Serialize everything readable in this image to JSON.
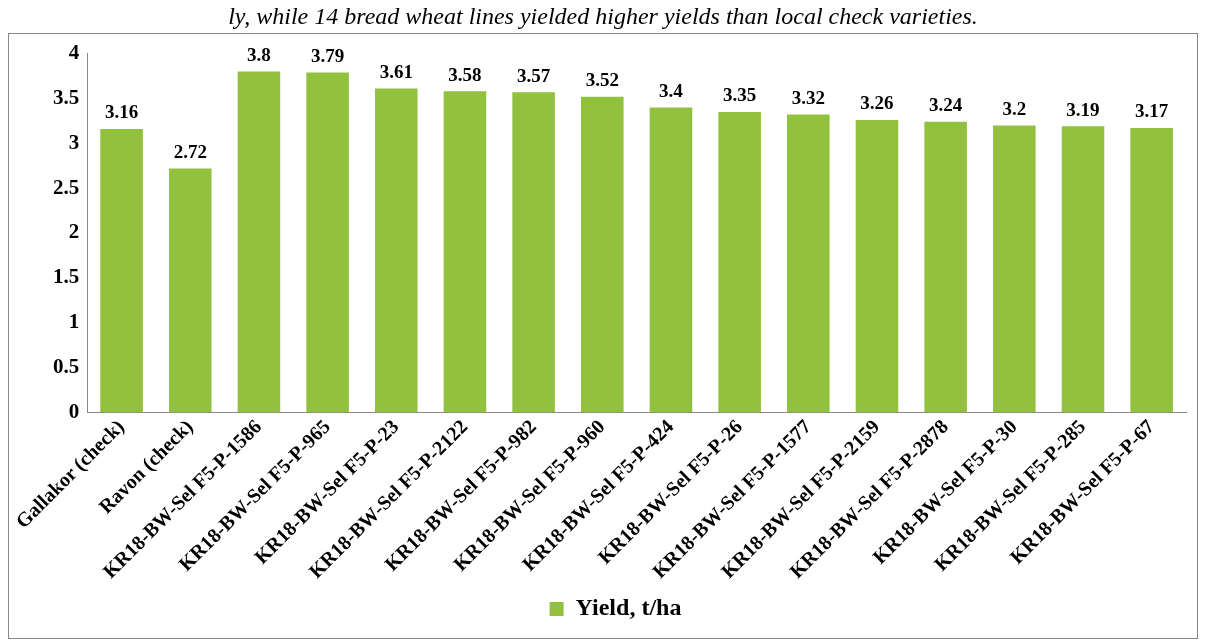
{
  "chart_data": {
    "type": "bar",
    "annotations": [
      "ly, while 14 bread wheat lines yielded higher yields than local check varieties."
    ],
    "categories": [
      "Gallakor (check)",
      "Ravon (check)",
      "KR18-BW-Sel F5-P-1586",
      "KR18-BW-Sel F5-P-965",
      "KR18-BW-Sel F5-P-23",
      "KR18-BW-Sel F5-P-2122",
      "KR18-BW-Sel F5-P-982",
      "KR18-BW-Sel F5-P-960",
      "KR18-BW-Sel F5-P-424",
      "KR18-BW-Sel F5-P-26",
      "KR18-BW-Sel F5-P-1577",
      "KR18-BW-Sel F5-P-2159",
      "KR18-BW-Sel F5-P-2878",
      "KR18-BW-Sel F5-P-30",
      "KR18-BW-Sel F5-P-285",
      "KR18-BW-Sel F5-P-67"
    ],
    "series": [
      {
        "name": "Yield, t/ha",
        "color": "#92c13f",
        "values": [
          3.16,
          2.72,
          3.8,
          3.79,
          3.61,
          3.58,
          3.57,
          3.52,
          3.4,
          3.35,
          3.32,
          3.26,
          3.24,
          3.2,
          3.19,
          3.17
        ]
      }
    ],
    "ylim": [
      0,
      4
    ],
    "yticks": [
      0,
      0.5,
      1,
      1.5,
      2,
      2.5,
      3,
      3.5,
      4
    ],
    "grid": false,
    "legend": "bottom",
    "data_labels": true
  }
}
